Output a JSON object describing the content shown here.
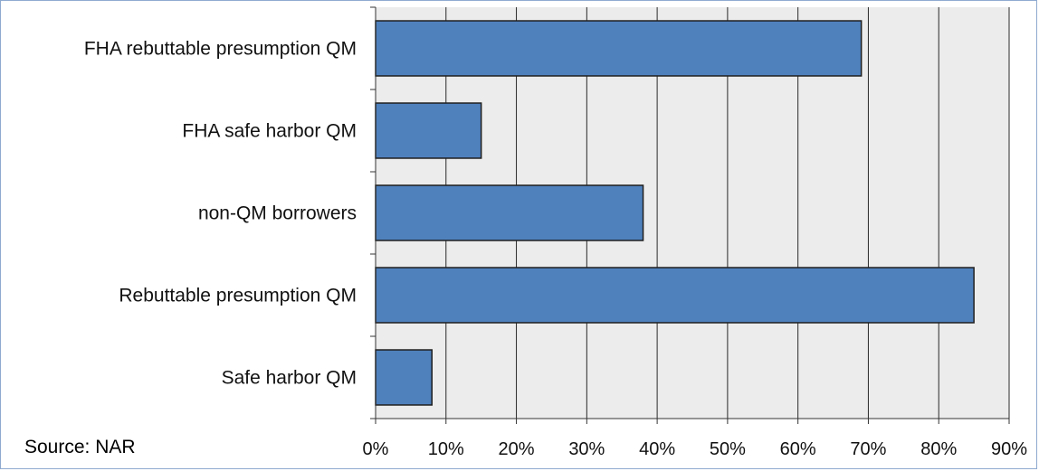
{
  "chart_data": {
    "type": "bar",
    "orientation": "horizontal",
    "categories": [
      "FHA rebuttable presumption QM",
      "FHA safe harbor QM",
      "non-QM borrowers",
      "Rebuttable presumption QM",
      "Safe harbor QM"
    ],
    "values": [
      69,
      15,
      38,
      85,
      8
    ],
    "unit": "%",
    "xlim": [
      0,
      90
    ],
    "xticks": [
      0,
      10,
      20,
      30,
      40,
      50,
      60,
      70,
      80,
      90
    ],
    "xtick_labels": [
      "0%",
      "10%",
      "20%",
      "30%",
      "40%",
      "50%",
      "60%",
      "70%",
      "80%",
      "90%"
    ],
    "grid": "vertical",
    "legend": "none",
    "colors": {
      "bar": "#4f81bd",
      "bar_border": "#1f1f1f",
      "plot_bg": "#ececec",
      "grid": "#2a2a2a"
    }
  },
  "source": "Source: NAR"
}
